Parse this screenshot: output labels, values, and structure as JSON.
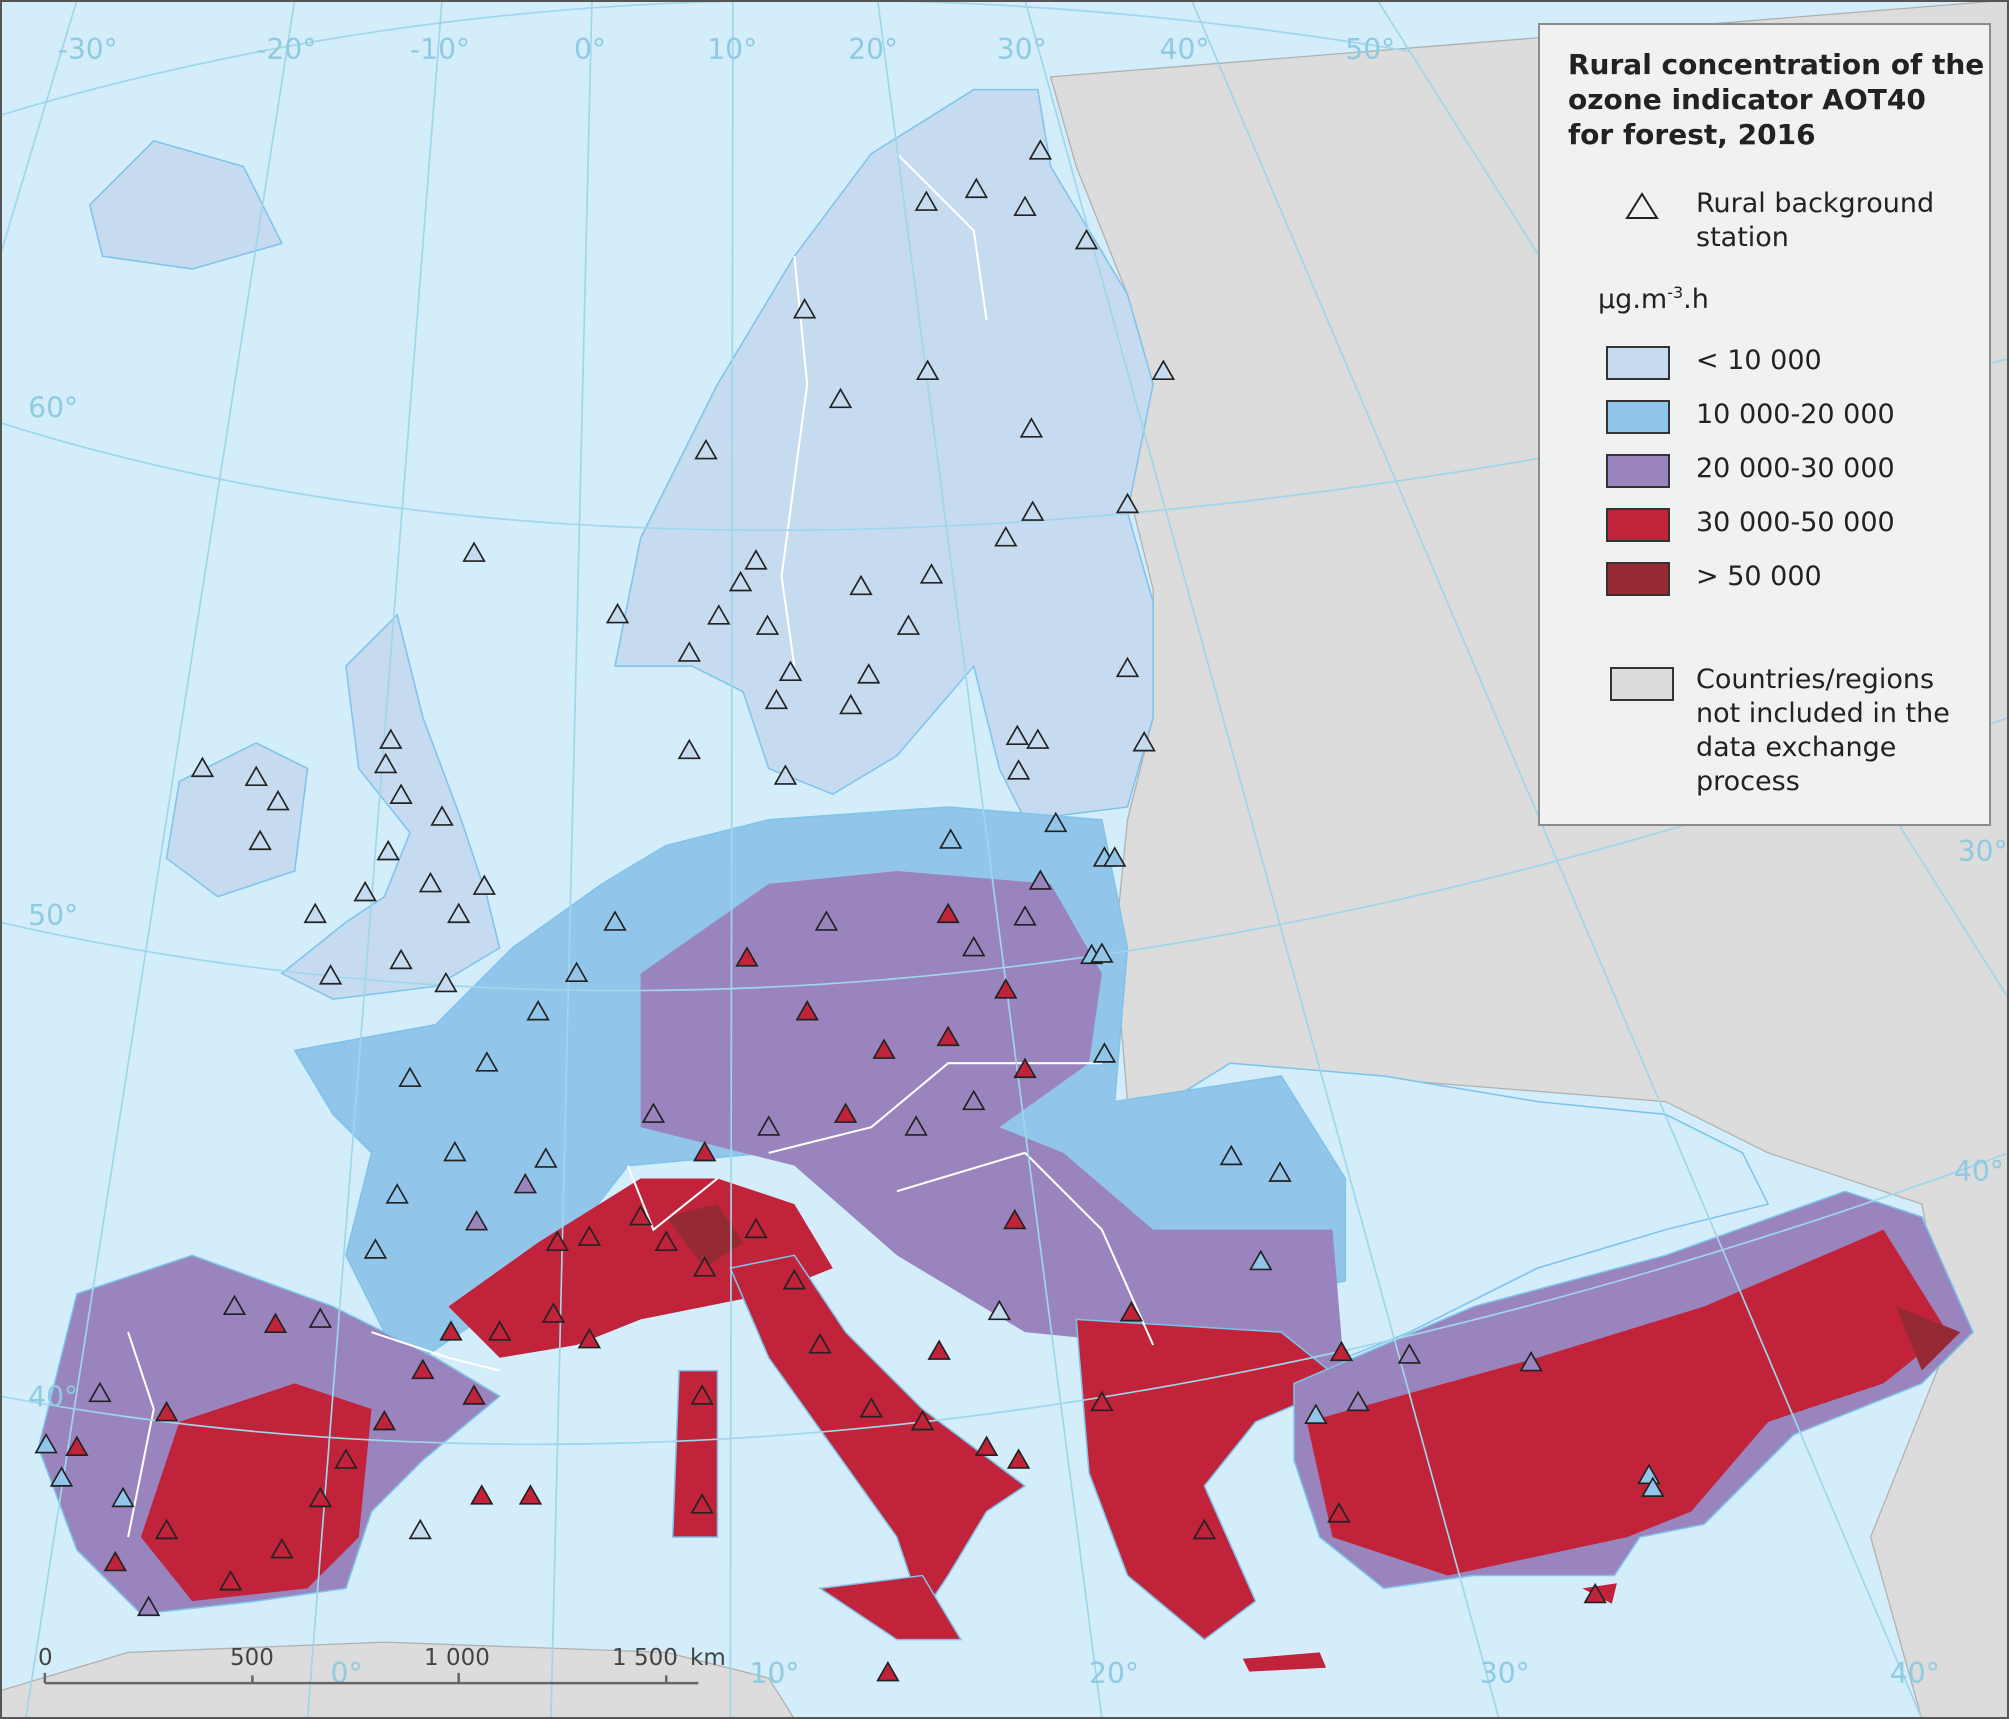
{
  "legend": {
    "title": "Rural concentration of the\nozone indicator AOT40\nfor forest, 2016",
    "station_label": "Rural background\nstation",
    "station_icon": "triangle-outline-icon",
    "unit_base": "µg.m",
    "unit_exp": "-3",
    "unit_suffix": ".h",
    "classes": [
      {
        "label": "< 10 000",
        "color": "#c6dbf0"
      },
      {
        "label": "10 000-20 000",
        "color": "#91c6ea"
      },
      {
        "label": "20 000-30 000",
        "color": "#9a84bd"
      },
      {
        "label": "30 000-50 000",
        "color": "#c0233a"
      },
      {
        "label": "> 50 000",
        "color": "#952a33"
      }
    ],
    "not_included": {
      "label": "Countries/regions\nnot included in the\ndata exchange\nprocess",
      "color": "#dcdcdc"
    }
  },
  "map": {
    "sea_color": "#d3edfb",
    "graticule_labels_top": [
      "-30°",
      "-20°",
      "-10°",
      "0°",
      "10°",
      "20°",
      "30°",
      "40°",
      "50°"
    ],
    "graticule_labels_left": [
      "60°",
      "50°",
      "40°"
    ],
    "graticule_labels_right": [
      "30°",
      "40°"
    ],
    "graticule_labels_bottom": [
      "0°",
      "10°",
      "20°",
      "30°",
      "40°"
    ]
  },
  "scale_bar": {
    "ticks": [
      "0",
      "500",
      "1 000",
      "1 500"
    ],
    "unit": "km"
  }
}
